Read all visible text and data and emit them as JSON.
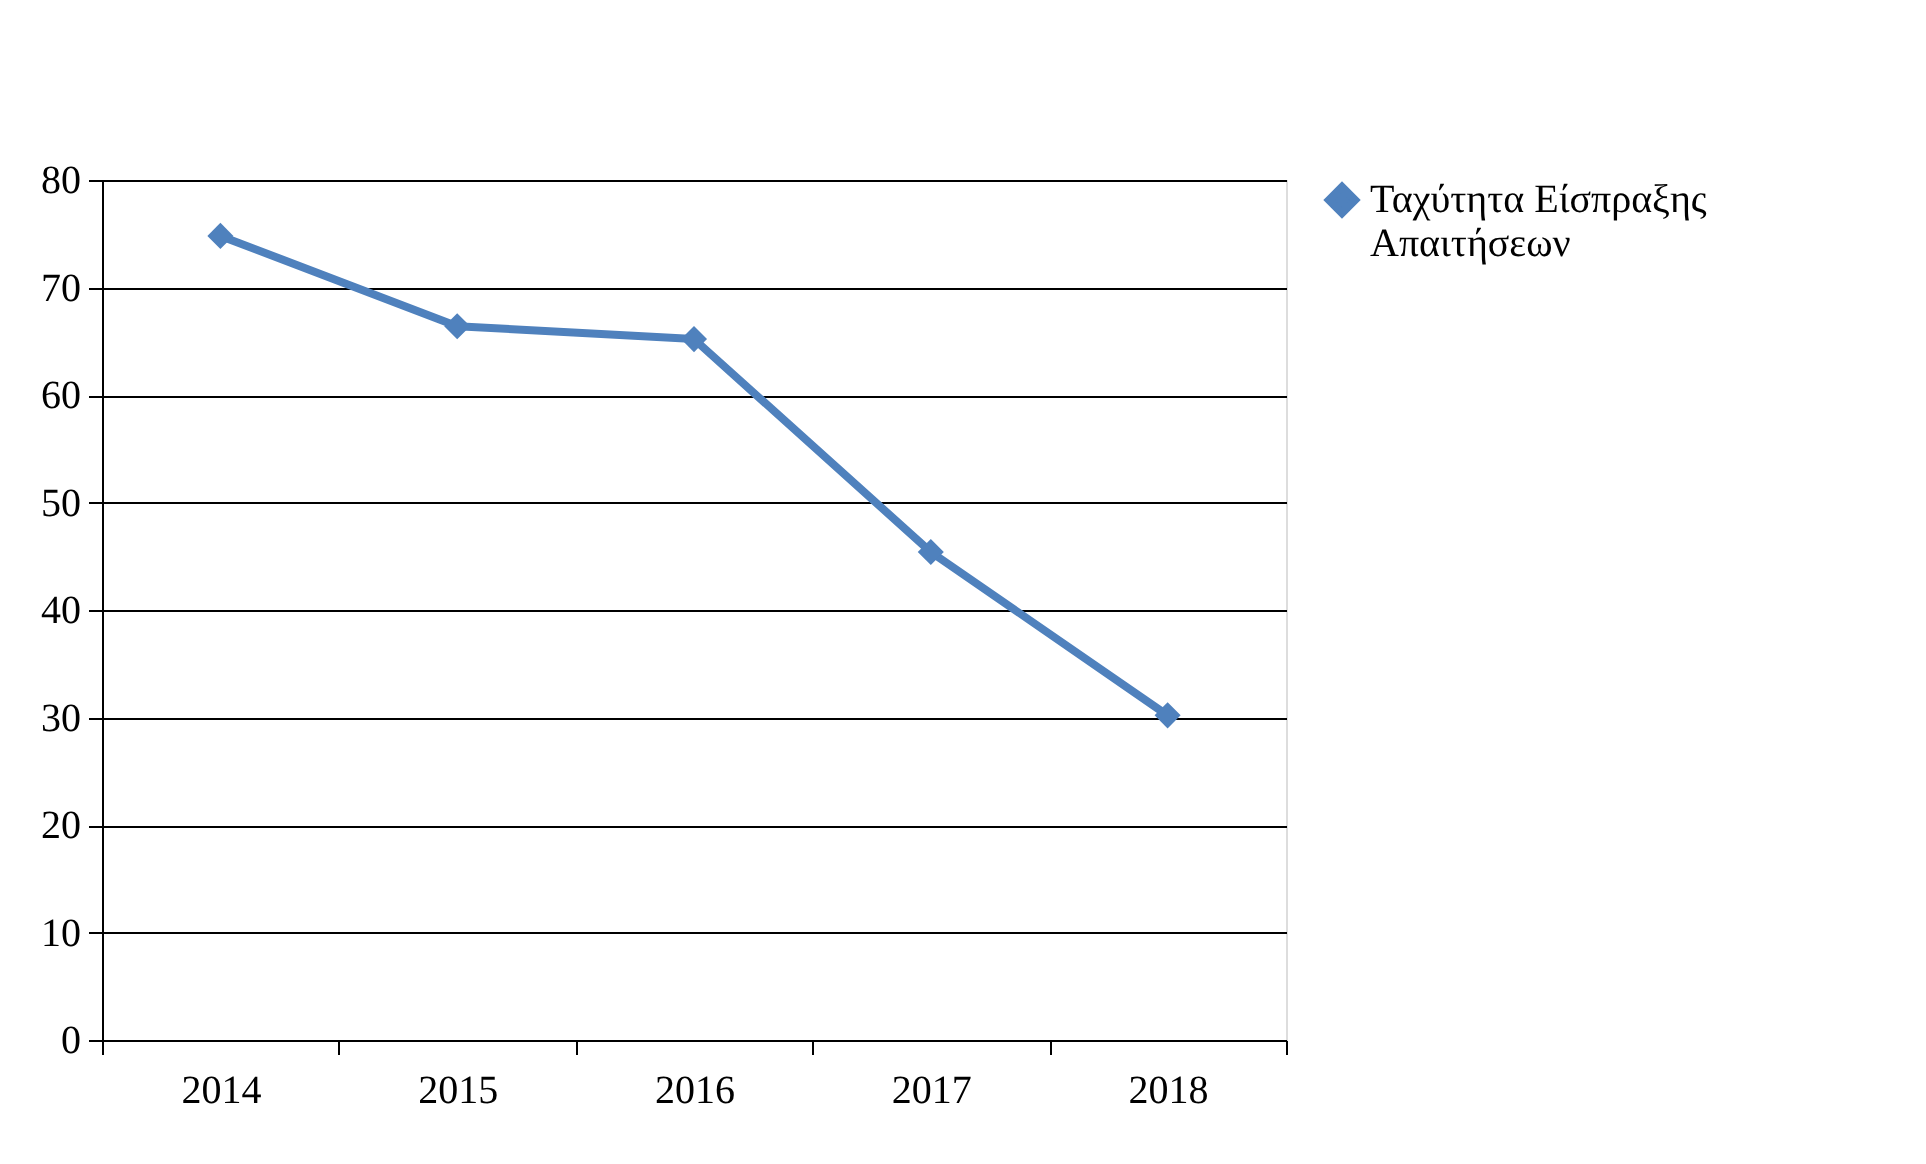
{
  "chart_data": {
    "type": "line",
    "categories": [
      "2014",
      "2015",
      "2016",
      "2017",
      "2018"
    ],
    "series": [
      {
        "name": "Ταχύτητα Είσπραξης Απαιτήσεων",
        "color": "#4f81bd",
        "values": [
          74.8,
          66.4,
          65.2,
          45.4,
          30.2
        ]
      }
    ],
    "ylim": [
      0,
      80
    ],
    "yticks": [
      0,
      10,
      20,
      30,
      40,
      50,
      60,
      70,
      80
    ],
    "grid": "y",
    "legend": "right",
    "marker": "diamond",
    "line_style": "solid"
  }
}
